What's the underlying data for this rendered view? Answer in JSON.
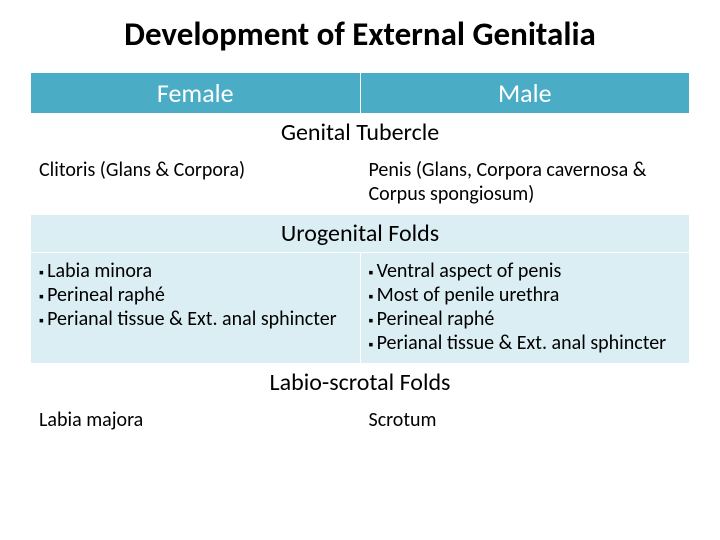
{
  "title": "Development of External Genitalia",
  "colors": {
    "header_bg": "#4bacc6",
    "header_text": "#ffffff",
    "band_bg": "#dbeef3",
    "text": "#000000",
    "page_bg": "#ffffff"
  },
  "fonts": {
    "title_size": 33,
    "header_size": 26,
    "section_size": 24,
    "body_size": 20,
    "family": "Calibri"
  },
  "columns": {
    "left": "Female",
    "right": "Male"
  },
  "sections": [
    {
      "heading": "Genital Tubercle",
      "banded": false,
      "left": {
        "type": "text",
        "value": "Clitoris (Glans & Corpora)"
      },
      "right": {
        "type": "text",
        "value": "Penis (Glans, Corpora cavernosa & Corpus spongiosum)"
      }
    },
    {
      "heading": "Urogenital Folds",
      "banded": true,
      "left": {
        "type": "list",
        "items": [
          "Labia minora",
          "Perineal raphé",
          "Perianal tissue & Ext. anal sphincter"
        ]
      },
      "right": {
        "type": "list",
        "items": [
          "Ventral aspect of penis",
          "Most of penile urethra",
          "Perineal raphé",
          "Perianal tissue & Ext. anal sphincter"
        ]
      }
    },
    {
      "heading": "Labio-scrotal Folds",
      "banded": false,
      "left": {
        "type": "text",
        "value": "Labia majora"
      },
      "right": {
        "type": "text",
        "value": "Scrotum"
      }
    }
  ]
}
